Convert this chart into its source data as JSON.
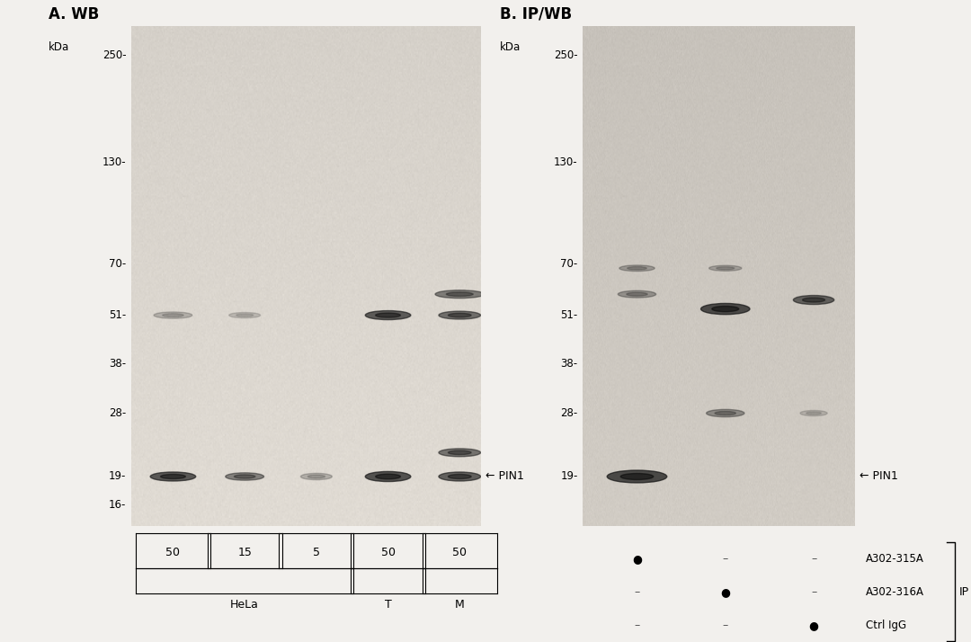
{
  "fig_width": 10.8,
  "fig_height": 7.14,
  "bg_color": "#f2f0ed",
  "panel_A": {
    "label": "A. WB",
    "blot_bg_light": [
      0.88,
      0.86,
      0.83
    ],
    "blot_bg_dark": [
      0.8,
      0.78,
      0.75
    ],
    "marker_kda": "kDa",
    "marker_values": [
      250,
      130,
      70,
      51,
      38,
      28,
      19,
      16
    ],
    "marker_labels": [
      "250-",
      "130-",
      "70-",
      "51-",
      "38-",
      "28-",
      "19-",
      "16-"
    ],
    "mw_min": 14,
    "mw_max": 300,
    "lane_labels": [
      "50",
      "15",
      "5",
      "50",
      "50"
    ],
    "pin1_label": "← PIN1",
    "bands": [
      {
        "lane": 0,
        "mw": 19,
        "intensity": 0.88,
        "xw": 0.13,
        "yw": 0.018
      },
      {
        "lane": 1,
        "mw": 19,
        "intensity": 0.6,
        "xw": 0.11,
        "yw": 0.015
      },
      {
        "lane": 2,
        "mw": 19,
        "intensity": 0.3,
        "xw": 0.09,
        "yw": 0.013
      },
      {
        "lane": 3,
        "mw": 19,
        "intensity": 0.92,
        "xw": 0.13,
        "yw": 0.02
      },
      {
        "lane": 4,
        "mw": 19,
        "intensity": 0.82,
        "xw": 0.12,
        "yw": 0.018
      },
      {
        "lane": 4,
        "mw": 22,
        "intensity": 0.7,
        "xw": 0.12,
        "yw": 0.016
      },
      {
        "lane": 0,
        "mw": 51,
        "intensity": 0.28,
        "xw": 0.11,
        "yw": 0.013
      },
      {
        "lane": 1,
        "mw": 51,
        "intensity": 0.22,
        "xw": 0.09,
        "yw": 0.011
      },
      {
        "lane": 3,
        "mw": 51,
        "intensity": 0.85,
        "xw": 0.13,
        "yw": 0.018
      },
      {
        "lane": 4,
        "mw": 51,
        "intensity": 0.72,
        "xw": 0.12,
        "yw": 0.016
      },
      {
        "lane": 4,
        "mw": 58,
        "intensity": 0.62,
        "xw": 0.14,
        "yw": 0.016
      }
    ]
  },
  "panel_B": {
    "label": "B. IP/WB",
    "blot_bg_light": [
      0.82,
      0.8,
      0.77
    ],
    "blot_bg_dark": [
      0.72,
      0.7,
      0.67
    ],
    "marker_kda": "kDa",
    "marker_values": [
      250,
      130,
      70,
      51,
      38,
      28,
      19
    ],
    "marker_labels": [
      "250-",
      "130-",
      "70-",
      "51-",
      "38-",
      "28-",
      "19-"
    ],
    "mw_min": 14,
    "mw_max": 300,
    "pin1_label": "← PIN1",
    "ip_label": "IP",
    "bands": [
      {
        "lane": 0,
        "mw": 19,
        "intensity": 0.95,
        "xw": 0.22,
        "yw": 0.025
      },
      {
        "lane": 1,
        "mw": 53,
        "intensity": 0.94,
        "xw": 0.18,
        "yw": 0.022
      },
      {
        "lane": 2,
        "mw": 56,
        "intensity": 0.78,
        "xw": 0.15,
        "yw": 0.018
      },
      {
        "lane": 0,
        "mw": 58,
        "intensity": 0.42,
        "xw": 0.14,
        "yw": 0.014
      },
      {
        "lane": 0,
        "mw": 68,
        "intensity": 0.36,
        "xw": 0.13,
        "yw": 0.012
      },
      {
        "lane": 1,
        "mw": 68,
        "intensity": 0.32,
        "xw": 0.12,
        "yw": 0.011
      },
      {
        "lane": 1,
        "mw": 28,
        "intensity": 0.48,
        "xw": 0.14,
        "yw": 0.015
      },
      {
        "lane": 2,
        "mw": 28,
        "intensity": 0.22,
        "xw": 0.1,
        "yw": 0.011
      }
    ],
    "dot_pattern": [
      [
        true,
        false,
        false
      ],
      [
        false,
        true,
        false
      ],
      [
        false,
        false,
        true
      ]
    ],
    "dot_labels": [
      "A302-315A",
      "A302-316A",
      "Ctrl IgG"
    ]
  }
}
